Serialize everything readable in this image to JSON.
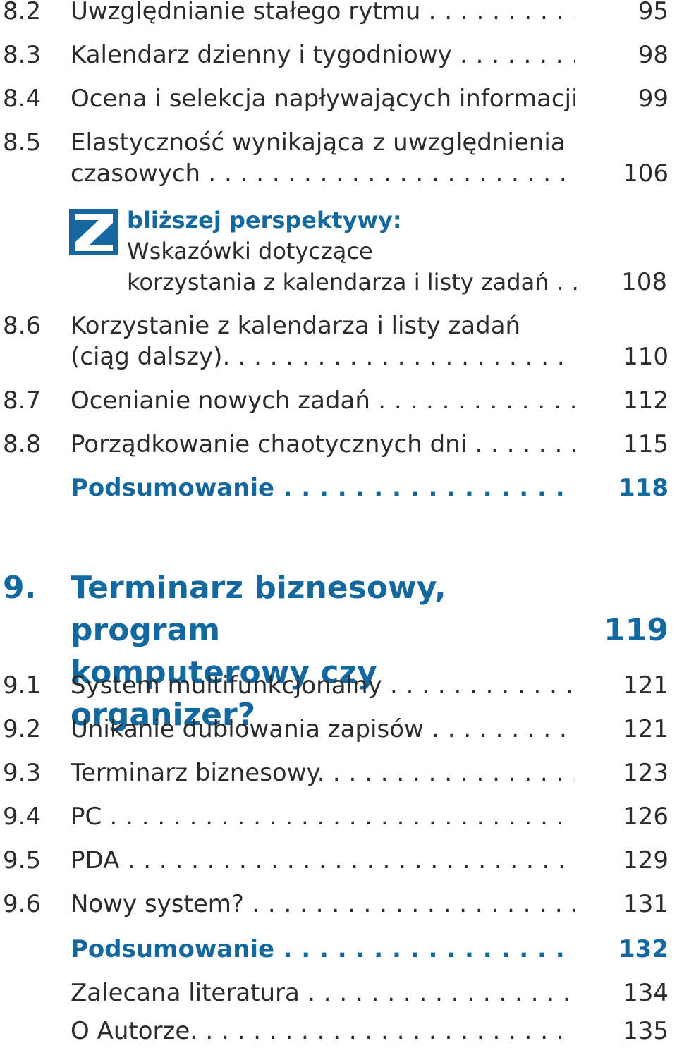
{
  "colors": {
    "accent": "#1468a0",
    "text": "#2b2b2b"
  },
  "entries_top": [
    {
      "num": "8.2",
      "title": "Uwzględnianie stałego rytmu",
      "page": "95"
    },
    {
      "num": "8.3",
      "title": "Kalendarz dzienny i tygodniowy",
      "page": "98"
    },
    {
      "num": "8.4",
      "title": "Ocena i selekcja napływających informacji.",
      "page": "99"
    },
    {
      "num": "8.5",
      "title_line1": "Elastyczność wynikająca z uwzględnienia luk",
      "title_line2": "czasowych",
      "page": "106"
    }
  ],
  "box": {
    "icon": "z-logo-icon",
    "heading": "bliższej perspektywy:",
    "line2": "Wskazówki dotyczące",
    "line3": "korzystania z kalendarza i listy zadań",
    "page": "108"
  },
  "entries_mid": [
    {
      "num": "8.6",
      "title_line1": "Korzystanie z kalendarza i listy zadań",
      "title_line2": "(ciąg dalszy).",
      "page": "110"
    },
    {
      "num": "8.7",
      "title": "Ocenianie nowych zadań",
      "page": "112"
    },
    {
      "num": "8.8",
      "title": "Porządkowanie chaotycznych dni",
      "page": "115"
    },
    {
      "title": "Podsumowanie",
      "page": "118"
    }
  ],
  "chapter": {
    "num": "9.",
    "title_line1": "Terminarz biznesowy, program",
    "title_line2": "komputerowy czy organizer?",
    "page": "119"
  },
  "entries_bottom": [
    {
      "num": "9.1",
      "title": "System multifunkcjonalny",
      "page": "121"
    },
    {
      "num": "9.2",
      "title": "Unikanie dublowania zapisów",
      "page": "121"
    },
    {
      "num": "9.3",
      "title": "Terminarz biznesowy.",
      "page": "123"
    },
    {
      "num": "9.4",
      "title": "PC",
      "page": "126"
    },
    {
      "num": "9.5",
      "title": "PDA",
      "page": "129"
    },
    {
      "num": "9.6",
      "title": "Nowy system?",
      "page": "131"
    },
    {
      "title": "Podsumowanie",
      "page": "132"
    },
    {
      "title": "Zalecana literatura",
      "page": "134"
    },
    {
      "title": "O Autorze.",
      "page": "135"
    }
  ]
}
